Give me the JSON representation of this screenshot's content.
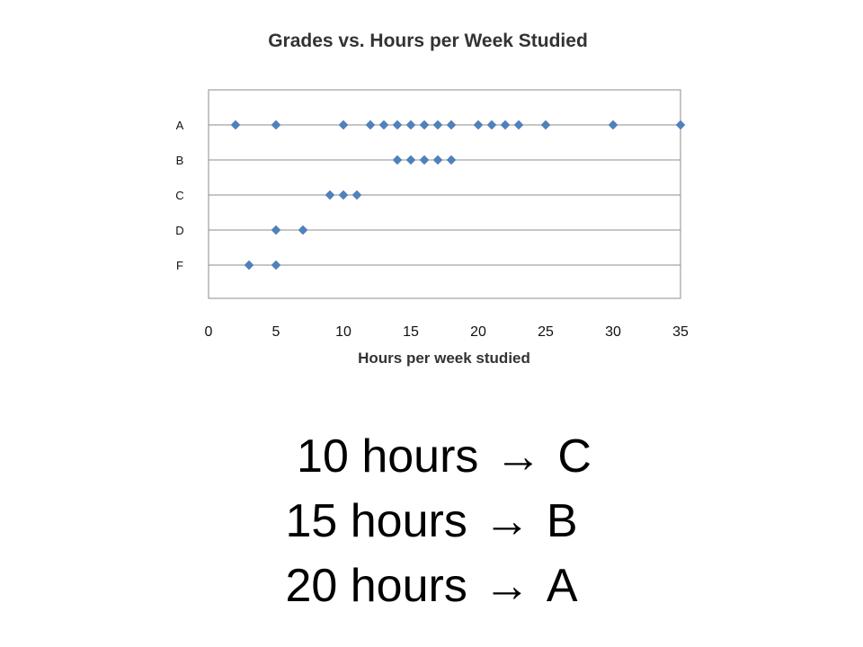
{
  "chart_data": {
    "type": "scatter",
    "title": "Grades vs. Hours per Week Studied",
    "xlabel": "Hours per week studied",
    "ylabel": "",
    "xlim": [
      0,
      35
    ],
    "x_ticks": [
      "0",
      "5",
      "10",
      "15",
      "20",
      "25",
      "30",
      "35"
    ],
    "y_categories": [
      "A",
      "B",
      "C",
      "D",
      "F"
    ],
    "grid": true,
    "legend": "none",
    "marker_color": "#4f81bd",
    "series": [
      {
        "points": [
          {
            "x": 2,
            "y": "A"
          },
          {
            "x": 5,
            "y": "A"
          },
          {
            "x": 10,
            "y": "A"
          },
          {
            "x": 12,
            "y": "A"
          },
          {
            "x": 13,
            "y": "A"
          },
          {
            "x": 14,
            "y": "A"
          },
          {
            "x": 15,
            "y": "A"
          },
          {
            "x": 16,
            "y": "A"
          },
          {
            "x": 17,
            "y": "A"
          },
          {
            "x": 18,
            "y": "A"
          },
          {
            "x": 20,
            "y": "A"
          },
          {
            "x": 21,
            "y": "A"
          },
          {
            "x": 22,
            "y": "A"
          },
          {
            "x": 23,
            "y": "A"
          },
          {
            "x": 25,
            "y": "A"
          },
          {
            "x": 30,
            "y": "A"
          },
          {
            "x": 35,
            "y": "A"
          },
          {
            "x": 14,
            "y": "B"
          },
          {
            "x": 15,
            "y": "B"
          },
          {
            "x": 16,
            "y": "B"
          },
          {
            "x": 17,
            "y": "B"
          },
          {
            "x": 18,
            "y": "B"
          },
          {
            "x": 9,
            "y": "C"
          },
          {
            "x": 10,
            "y": "C"
          },
          {
            "x": 11,
            "y": "C"
          },
          {
            "x": 5,
            "y": "D"
          },
          {
            "x": 7,
            "y": "D"
          },
          {
            "x": 3,
            "y": "F"
          },
          {
            "x": 5,
            "y": "F"
          }
        ]
      }
    ]
  },
  "captions": [
    {
      "hours": "10 hours",
      "arrow": "→",
      "grade": "C"
    },
    {
      "hours": "15 hours",
      "arrow": "→",
      "grade": "B"
    },
    {
      "hours": "20 hours",
      "arrow": "→",
      "grade": "A"
    }
  ]
}
